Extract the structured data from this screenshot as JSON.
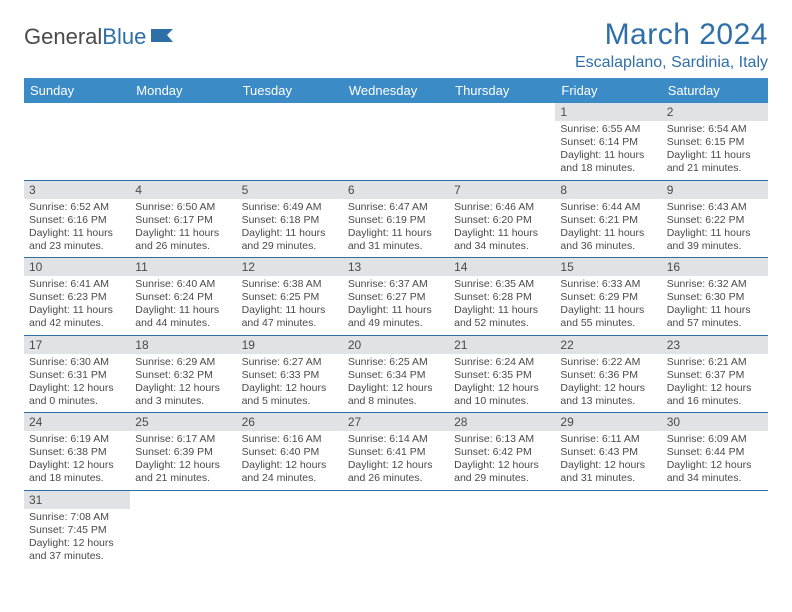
{
  "logo": {
    "text1": "General",
    "text2": "Blue"
  },
  "title": "March 2024",
  "location": "Escalaplano, Sardinia, Italy",
  "dayHeaders": [
    "Sunday",
    "Monday",
    "Tuesday",
    "Wednesday",
    "Thursday",
    "Friday",
    "Saturday"
  ],
  "colors": {
    "header_bg": "#3b8bc7",
    "accent": "#2f6fa7",
    "daynum_bg": "#dfe3e6",
    "text": "#4a4a4a",
    "bg": "#ffffff"
  },
  "weeks": [
    [
      null,
      null,
      null,
      null,
      null,
      {
        "n": "1",
        "sr": "Sunrise: 6:55 AM",
        "ss": "Sunset: 6:14 PM",
        "d1": "Daylight: 11 hours",
        "d2": "and 18 minutes."
      },
      {
        "n": "2",
        "sr": "Sunrise: 6:54 AM",
        "ss": "Sunset: 6:15 PM",
        "d1": "Daylight: 11 hours",
        "d2": "and 21 minutes."
      }
    ],
    [
      {
        "n": "3",
        "sr": "Sunrise: 6:52 AM",
        "ss": "Sunset: 6:16 PM",
        "d1": "Daylight: 11 hours",
        "d2": "and 23 minutes."
      },
      {
        "n": "4",
        "sr": "Sunrise: 6:50 AM",
        "ss": "Sunset: 6:17 PM",
        "d1": "Daylight: 11 hours",
        "d2": "and 26 minutes."
      },
      {
        "n": "5",
        "sr": "Sunrise: 6:49 AM",
        "ss": "Sunset: 6:18 PM",
        "d1": "Daylight: 11 hours",
        "d2": "and 29 minutes."
      },
      {
        "n": "6",
        "sr": "Sunrise: 6:47 AM",
        "ss": "Sunset: 6:19 PM",
        "d1": "Daylight: 11 hours",
        "d2": "and 31 minutes."
      },
      {
        "n": "7",
        "sr": "Sunrise: 6:46 AM",
        "ss": "Sunset: 6:20 PM",
        "d1": "Daylight: 11 hours",
        "d2": "and 34 minutes."
      },
      {
        "n": "8",
        "sr": "Sunrise: 6:44 AM",
        "ss": "Sunset: 6:21 PM",
        "d1": "Daylight: 11 hours",
        "d2": "and 36 minutes."
      },
      {
        "n": "9",
        "sr": "Sunrise: 6:43 AM",
        "ss": "Sunset: 6:22 PM",
        "d1": "Daylight: 11 hours",
        "d2": "and 39 minutes."
      }
    ],
    [
      {
        "n": "10",
        "sr": "Sunrise: 6:41 AM",
        "ss": "Sunset: 6:23 PM",
        "d1": "Daylight: 11 hours",
        "d2": "and 42 minutes."
      },
      {
        "n": "11",
        "sr": "Sunrise: 6:40 AM",
        "ss": "Sunset: 6:24 PM",
        "d1": "Daylight: 11 hours",
        "d2": "and 44 minutes."
      },
      {
        "n": "12",
        "sr": "Sunrise: 6:38 AM",
        "ss": "Sunset: 6:25 PM",
        "d1": "Daylight: 11 hours",
        "d2": "and 47 minutes."
      },
      {
        "n": "13",
        "sr": "Sunrise: 6:37 AM",
        "ss": "Sunset: 6:27 PM",
        "d1": "Daylight: 11 hours",
        "d2": "and 49 minutes."
      },
      {
        "n": "14",
        "sr": "Sunrise: 6:35 AM",
        "ss": "Sunset: 6:28 PM",
        "d1": "Daylight: 11 hours",
        "d2": "and 52 minutes."
      },
      {
        "n": "15",
        "sr": "Sunrise: 6:33 AM",
        "ss": "Sunset: 6:29 PM",
        "d1": "Daylight: 11 hours",
        "d2": "and 55 minutes."
      },
      {
        "n": "16",
        "sr": "Sunrise: 6:32 AM",
        "ss": "Sunset: 6:30 PM",
        "d1": "Daylight: 11 hours",
        "d2": "and 57 minutes."
      }
    ],
    [
      {
        "n": "17",
        "sr": "Sunrise: 6:30 AM",
        "ss": "Sunset: 6:31 PM",
        "d1": "Daylight: 12 hours",
        "d2": "and 0 minutes."
      },
      {
        "n": "18",
        "sr": "Sunrise: 6:29 AM",
        "ss": "Sunset: 6:32 PM",
        "d1": "Daylight: 12 hours",
        "d2": "and 3 minutes."
      },
      {
        "n": "19",
        "sr": "Sunrise: 6:27 AM",
        "ss": "Sunset: 6:33 PM",
        "d1": "Daylight: 12 hours",
        "d2": "and 5 minutes."
      },
      {
        "n": "20",
        "sr": "Sunrise: 6:25 AM",
        "ss": "Sunset: 6:34 PM",
        "d1": "Daylight: 12 hours",
        "d2": "and 8 minutes."
      },
      {
        "n": "21",
        "sr": "Sunrise: 6:24 AM",
        "ss": "Sunset: 6:35 PM",
        "d1": "Daylight: 12 hours",
        "d2": "and 10 minutes."
      },
      {
        "n": "22",
        "sr": "Sunrise: 6:22 AM",
        "ss": "Sunset: 6:36 PM",
        "d1": "Daylight: 12 hours",
        "d2": "and 13 minutes."
      },
      {
        "n": "23",
        "sr": "Sunrise: 6:21 AM",
        "ss": "Sunset: 6:37 PM",
        "d1": "Daylight: 12 hours",
        "d2": "and 16 minutes."
      }
    ],
    [
      {
        "n": "24",
        "sr": "Sunrise: 6:19 AM",
        "ss": "Sunset: 6:38 PM",
        "d1": "Daylight: 12 hours",
        "d2": "and 18 minutes."
      },
      {
        "n": "25",
        "sr": "Sunrise: 6:17 AM",
        "ss": "Sunset: 6:39 PM",
        "d1": "Daylight: 12 hours",
        "d2": "and 21 minutes."
      },
      {
        "n": "26",
        "sr": "Sunrise: 6:16 AM",
        "ss": "Sunset: 6:40 PM",
        "d1": "Daylight: 12 hours",
        "d2": "and 24 minutes."
      },
      {
        "n": "27",
        "sr": "Sunrise: 6:14 AM",
        "ss": "Sunset: 6:41 PM",
        "d1": "Daylight: 12 hours",
        "d2": "and 26 minutes."
      },
      {
        "n": "28",
        "sr": "Sunrise: 6:13 AM",
        "ss": "Sunset: 6:42 PM",
        "d1": "Daylight: 12 hours",
        "d2": "and 29 minutes."
      },
      {
        "n": "29",
        "sr": "Sunrise: 6:11 AM",
        "ss": "Sunset: 6:43 PM",
        "d1": "Daylight: 12 hours",
        "d2": "and 31 minutes."
      },
      {
        "n": "30",
        "sr": "Sunrise: 6:09 AM",
        "ss": "Sunset: 6:44 PM",
        "d1": "Daylight: 12 hours",
        "d2": "and 34 minutes."
      }
    ],
    [
      {
        "n": "31",
        "sr": "Sunrise: 7:08 AM",
        "ss": "Sunset: 7:45 PM",
        "d1": "Daylight: 12 hours",
        "d2": "and 37 minutes."
      },
      null,
      null,
      null,
      null,
      null,
      null
    ]
  ]
}
